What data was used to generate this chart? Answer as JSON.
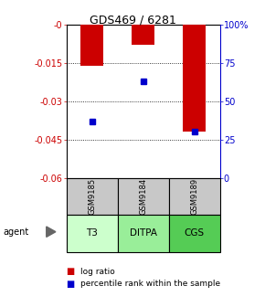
{
  "title": "GDS469 / 6281",
  "samples": [
    "GSM9185",
    "GSM9184",
    "GSM9189"
  ],
  "agents": [
    "T3",
    "DITPA",
    "CGS"
  ],
  "log_ratios": [
    -0.016,
    -0.008,
    -0.042
  ],
  "percentile_ranks": [
    0.37,
    0.63,
    0.3
  ],
  "bar_color": "#cc0000",
  "dot_color": "#0000cc",
  "yticks_left": [
    0,
    -0.015,
    -0.03,
    -0.045,
    -0.06
  ],
  "ytick_labels_left": [
    "-0",
    "-0.015",
    "-0.03",
    "-0.045",
    "-0.06"
  ],
  "yticks_right": [
    0.0,
    0.25,
    0.5,
    0.75,
    1.0
  ],
  "ytick_labels_right": [
    "0",
    "25",
    "50",
    "75",
    "100%"
  ],
  "agent_colors": [
    "#ccffcc",
    "#99ee99",
    "#55cc55"
  ],
  "sample_bg": "#c8c8c8",
  "bar_width": 0.45,
  "left_axis_color": "#cc0000",
  "right_axis_color": "#0000cc",
  "ymin": -0.06,
  "ymax": 0.0
}
